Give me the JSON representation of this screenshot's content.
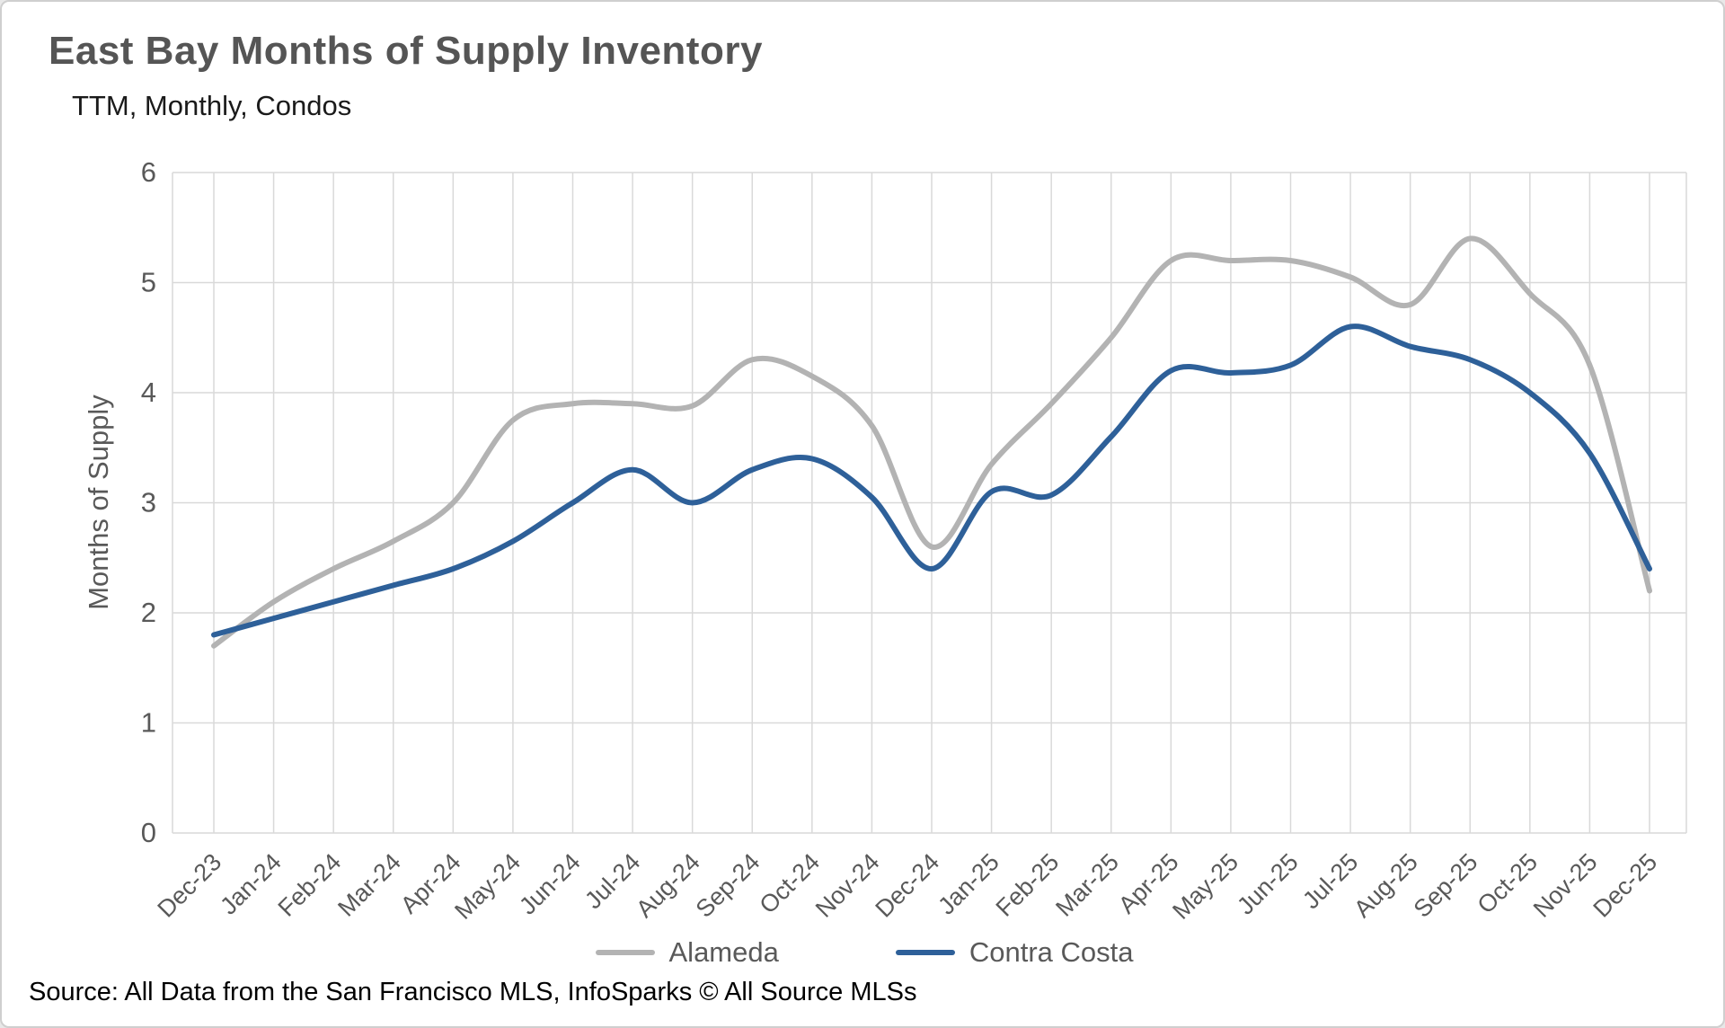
{
  "page": {
    "title": "East Bay Months of Supply Inventory",
    "subtitle": "TTM, Monthly, Condos"
  },
  "footer": {
    "source": "Source: All Data from the San Francisco MLS, InfoSparks © All Source MLSs"
  },
  "chart_data": {
    "type": "line",
    "title": "East Bay Months of Supply Inventory",
    "subtitle": "TTM, Monthly, Condos",
    "xlabel": "",
    "ylabel": "Months of Supply",
    "ylim": [
      0,
      6
    ],
    "yticks": [
      0,
      1,
      2,
      3,
      4,
      5,
      6
    ],
    "grid": true,
    "legend_position": "bottom",
    "grid_color": "#d9d9d9",
    "tick_label_color": "#595959",
    "categories": [
      "Dec-23",
      "Jan-24",
      "Feb-24",
      "Mar-24",
      "Apr-24",
      "May-24",
      "Jun-24",
      "Jul-24",
      "Aug-24",
      "Sep-24",
      "Oct-24",
      "Nov-24",
      "Dec-24",
      "Jan-25",
      "Feb-25",
      "Mar-25",
      "Apr-25",
      "May-25",
      "Jun-25",
      "Jul-25",
      "Aug-25",
      "Sep-25",
      "Oct-25",
      "Nov-25",
      "Dec-25"
    ],
    "series": [
      {
        "name": "Alameda",
        "color": "#b3b3b3",
        "values": [
          1.7,
          2.1,
          2.4,
          2.65,
          3.0,
          3.75,
          3.9,
          3.9,
          3.88,
          4.3,
          4.15,
          3.7,
          2.6,
          3.35,
          3.9,
          4.5,
          5.2,
          5.2,
          5.2,
          5.05,
          4.8,
          5.4,
          4.9,
          4.25,
          2.2
        ]
      },
      {
        "name": "Contra Costa",
        "color": "#2e6099",
        "values": [
          1.8,
          1.95,
          2.1,
          2.25,
          2.4,
          2.65,
          3.0,
          3.3,
          3.0,
          3.3,
          3.4,
          3.05,
          2.4,
          3.1,
          3.07,
          3.6,
          4.2,
          4.18,
          4.25,
          4.6,
          4.42,
          4.3,
          4.0,
          3.45,
          2.4
        ]
      }
    ]
  }
}
